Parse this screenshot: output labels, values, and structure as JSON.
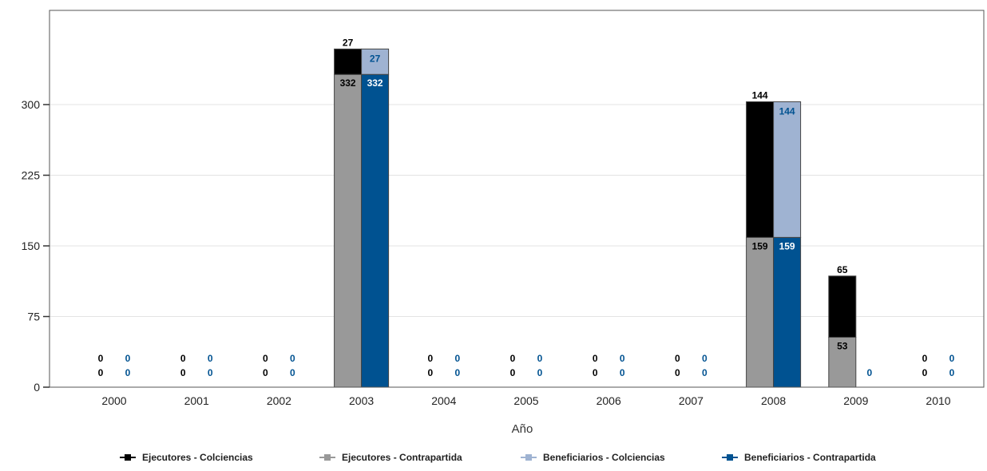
{
  "chart_data": {
    "type": "bar",
    "title": "",
    "xlabel": "Año",
    "ylabel": "",
    "ylim": [
      0,
      400
    ],
    "yticks": [
      0,
      75,
      150,
      225,
      300
    ],
    "grid": true,
    "legend_position": "bottom",
    "categories": [
      "2000",
      "2001",
      "2002",
      "2003",
      "2004",
      "2005",
      "2006",
      "2007",
      "2008",
      "2009",
      "2010"
    ],
    "stacks": [
      {
        "name": "Ejecutores",
        "series": [
          "Ejecutores - Contrapartida",
          "Ejecutores - Colciencias"
        ]
      },
      {
        "name": "Beneficiarios",
        "series": [
          "Beneficiarios - Contrapartida",
          "Beneficiarios - Colciencias"
        ]
      }
    ],
    "series": [
      {
        "name": "Ejecutores - Colciencias",
        "color": "#000000",
        "values": [
          0,
          0,
          0,
          27,
          0,
          0,
          0,
          0,
          144,
          65,
          0
        ]
      },
      {
        "name": "Ejecutores - Contrapartida",
        "color": "#999999",
        "values": [
          0,
          0,
          0,
          332,
          0,
          0,
          0,
          0,
          159,
          53,
          0
        ]
      },
      {
        "name": "Beneficiarios - Colciencias",
        "color": "#9fb3d2",
        "values": [
          0,
          0,
          0,
          27,
          0,
          0,
          0,
          0,
          144,
          null,
          0
        ]
      },
      {
        "name": "Beneficiarios - Contrapartida",
        "color": "#005291",
        "values": [
          0,
          0,
          0,
          332,
          0,
          0,
          0,
          0,
          159,
          0,
          0
        ]
      }
    ]
  }
}
